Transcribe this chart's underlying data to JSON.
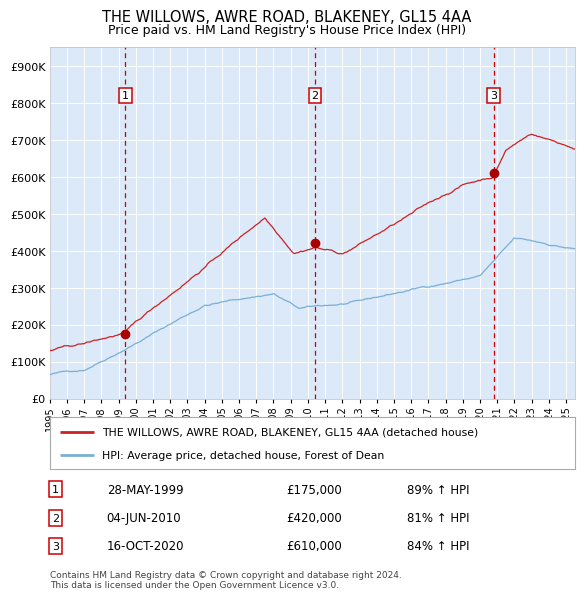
{
  "title": "THE WILLOWS, AWRE ROAD, BLAKENEY, GL15 4AA",
  "subtitle": "Price paid vs. HM Land Registry's House Price Index (HPI)",
  "hpi_label": "HPI: Average price, detached house, Forest of Dean",
  "property_label": "THE WILLOWS, AWRE ROAD, BLAKENEY, GL15 4AA (detached house)",
  "footer": "Contains HM Land Registry data © Crown copyright and database right 2024.\nThis data is licensed under the Open Government Licence v3.0.",
  "sale_dates": [
    "28-MAY-1999",
    "04-JUN-2010",
    "16-OCT-2020"
  ],
  "sale_prices": [
    175000,
    420000,
    610000
  ],
  "sale_hpi_pct": [
    "89% ↑ HPI",
    "81% ↑ HPI",
    "84% ↑ HPI"
  ],
  "xlim_start": 1995.0,
  "xlim_end": 2025.5,
  "ylim_min": 0,
  "ylim_max": 950000,
  "yticks": [
    0,
    100000,
    200000,
    300000,
    400000,
    500000,
    600000,
    700000,
    800000,
    900000
  ],
  "ytick_labels": [
    "£0",
    "£100K",
    "£200K",
    "£300K",
    "£400K",
    "£500K",
    "£600K",
    "£700K",
    "£800K",
    "£900K"
  ],
  "background_color": "#dce9f8",
  "hpi_line_color": "#7bafd4",
  "property_line_color": "#cc2222",
  "sale_marker_color": "#aa0000",
  "vline_color": "#cc0000",
  "grid_color": "#ffffff",
  "title_fontsize": 10.5,
  "subtitle_fontsize": 9,
  "sale_years_decimal": [
    1999.4,
    2010.42,
    2020.79
  ],
  "hpi_seed": 42
}
